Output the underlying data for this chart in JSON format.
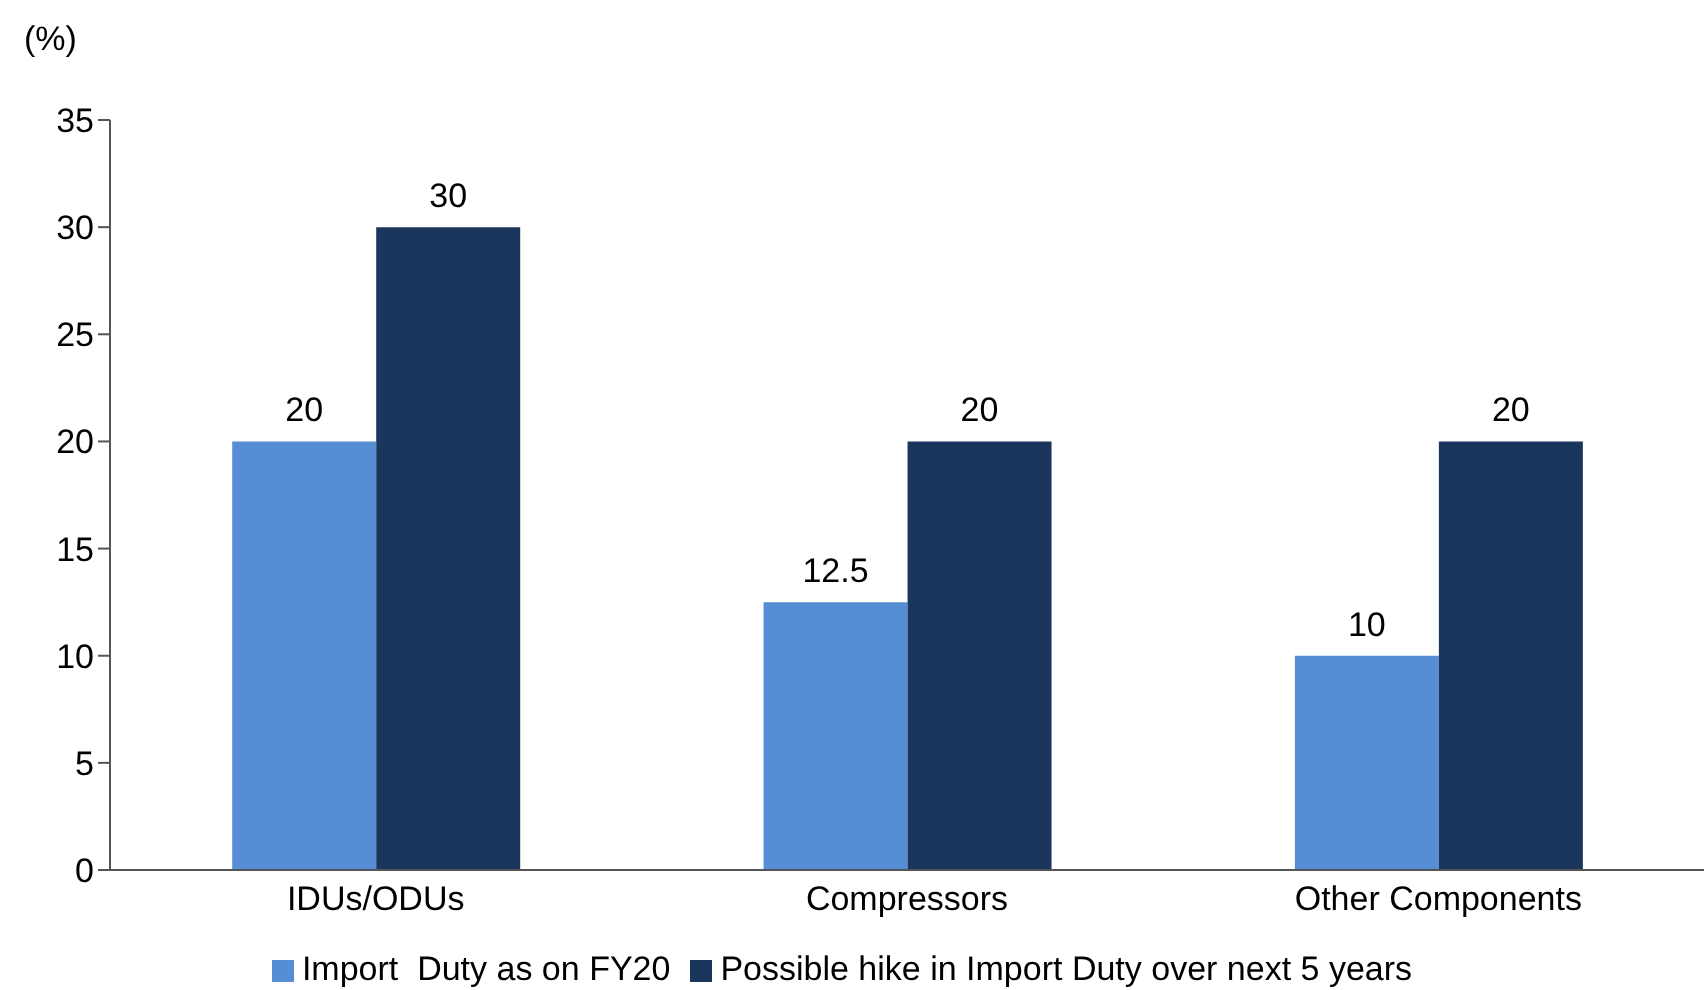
{
  "chart_data": {
    "type": "bar",
    "ylabel": "(%)",
    "categories": [
      "IDUs/ODUs",
      "Compressors",
      "Other Components"
    ],
    "series": [
      {
        "name": "Import  Duty as on FY20",
        "color": "#558ed5",
        "values": [
          20,
          12.5,
          10
        ]
      },
      {
        "name": "Possible hike in Import Duty over next 5 years",
        "color": "#1b365d",
        "values": [
          30,
          20,
          20
        ]
      }
    ],
    "ylim": [
      0,
      35
    ],
    "yticks": [
      0,
      5,
      10,
      15,
      20,
      25,
      30,
      35
    ],
    "data_labels": true,
    "legend": "bottom"
  }
}
